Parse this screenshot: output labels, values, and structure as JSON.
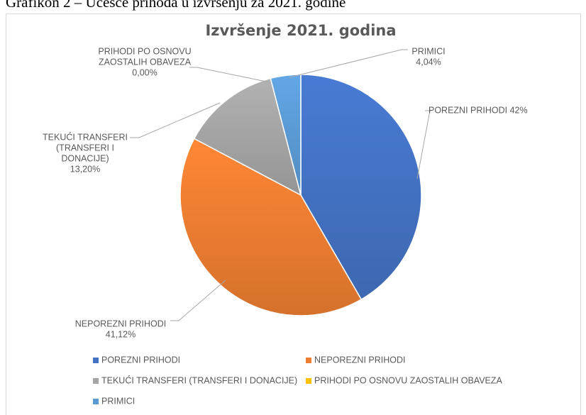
{
  "caption": "Grafikon 2 – Učešće prihoda u izvršenju za 2021. godine",
  "chart_data": {
    "type": "pie",
    "title": "Izvršenje 2021. godina",
    "categories": [
      "POREZNI PRIHODI",
      "NEPOREZNI PRIHODI",
      "TEKUĆI TRANSFERI (TRANSFERI I DONACIJE)",
      "PRIHODI PO OSNOVU ZAOSTALIH OBAVEZA",
      "PRIMICI"
    ],
    "values": [
      41.64,
      41.12,
      13.2,
      0.0,
      4.04
    ],
    "colors": [
      "#4472c4",
      "#ed7d31",
      "#a5a5a5",
      "#ffc000",
      "#5b9bd5"
    ],
    "data_labels": [
      [
        "POREZNI PRIHODI 42%"
      ],
      [
        "NEPOREZNI PRIHODI",
        "41,12%"
      ],
      [
        "TEKUĆI TRANSFERI",
        "(TRANSFERI I",
        "DONACIJE)",
        "13,20%"
      ],
      [
        "PRIHODI PO OSNOVU",
        "ZAOSTALIH OBAVEZA",
        "0,00%"
      ],
      [
        "PRIMICI",
        "4,04%"
      ]
    ],
    "legend": "bottom"
  }
}
